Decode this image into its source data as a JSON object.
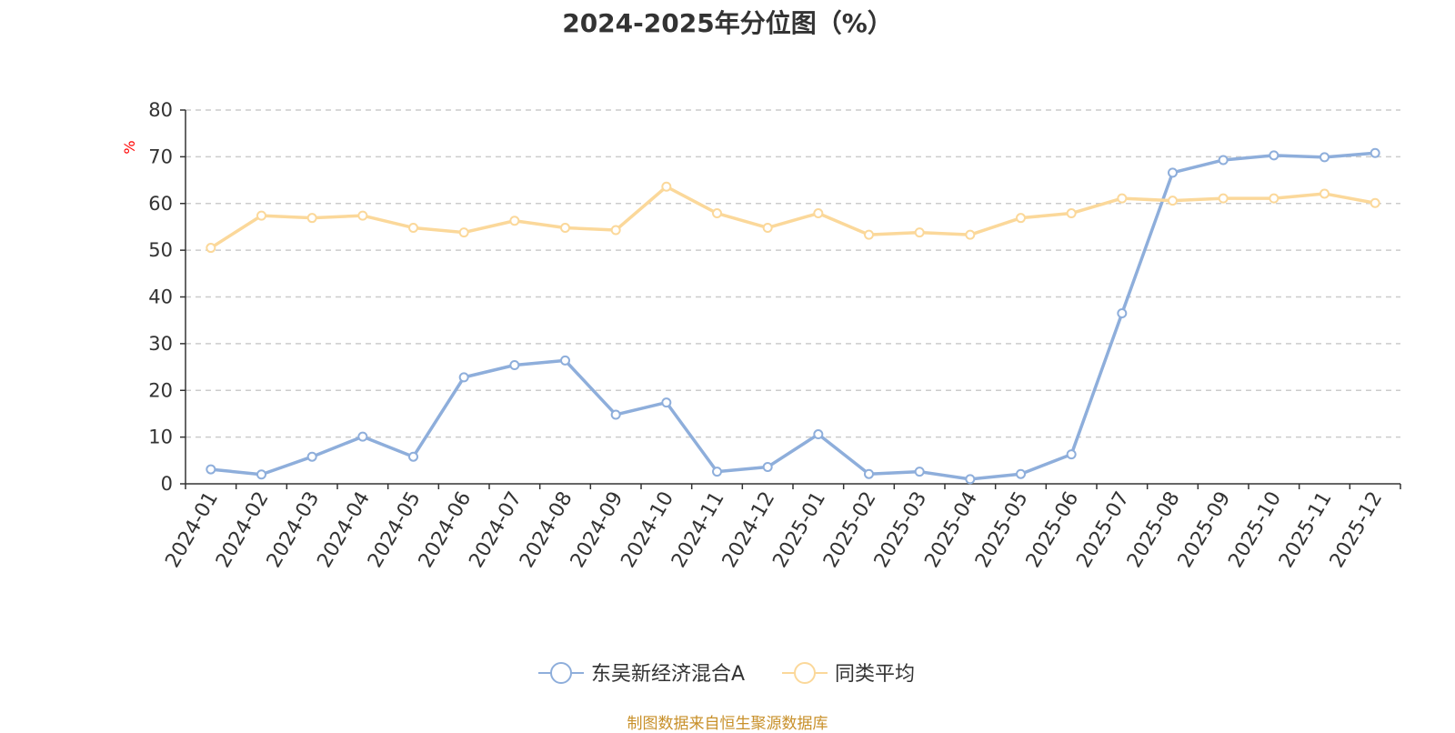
{
  "title": "2024-2025年分位图（%）",
  "source": "制图数据来自恒生聚源数据库",
  "chart_data": {
    "type": "line",
    "title": "2024-2025年分位图（%）",
    "ylabel": "%",
    "xlabel": "",
    "ylim": [
      0,
      80
    ],
    "yticks": [
      0,
      10,
      20,
      30,
      40,
      50,
      60,
      70,
      80
    ],
    "grid": "horizontal-dashed",
    "legend_position": "bottom-center",
    "categories": [
      "2024-01",
      "2024-02",
      "2024-03",
      "2024-04",
      "2024-05",
      "2024-06",
      "2024-07",
      "2024-08",
      "2024-09",
      "2024-10",
      "2024-11",
      "2024-12",
      "2025-01",
      "2025-02",
      "2025-03",
      "2025-04",
      "2025-05",
      "2025-06",
      "2025-07",
      "2025-08",
      "2025-09",
      "2025-10",
      "2025-11",
      "2025-12"
    ],
    "series": [
      {
        "name": "东吴新经济混合A",
        "color": "#8eaedb",
        "values": [
          3.1,
          2.0,
          5.8,
          10.1,
          5.8,
          22.8,
          25.4,
          26.4,
          14.8,
          17.4,
          2.6,
          3.6,
          10.6,
          2.1,
          2.6,
          1.0,
          2.1,
          6.3,
          36.5,
          66.6,
          69.3,
          70.3,
          69.9,
          70.8
        ]
      },
      {
        "name": "同类平均",
        "color": "#fbd89a",
        "values": [
          50.5,
          57.4,
          56.9,
          57.4,
          54.8,
          53.8,
          56.3,
          54.8,
          54.3,
          63.6,
          57.9,
          54.8,
          57.9,
          53.3,
          53.8,
          53.3,
          56.9,
          57.9,
          61.1,
          60.6,
          61.1,
          61.1,
          62.1,
          60.1
        ]
      }
    ]
  }
}
